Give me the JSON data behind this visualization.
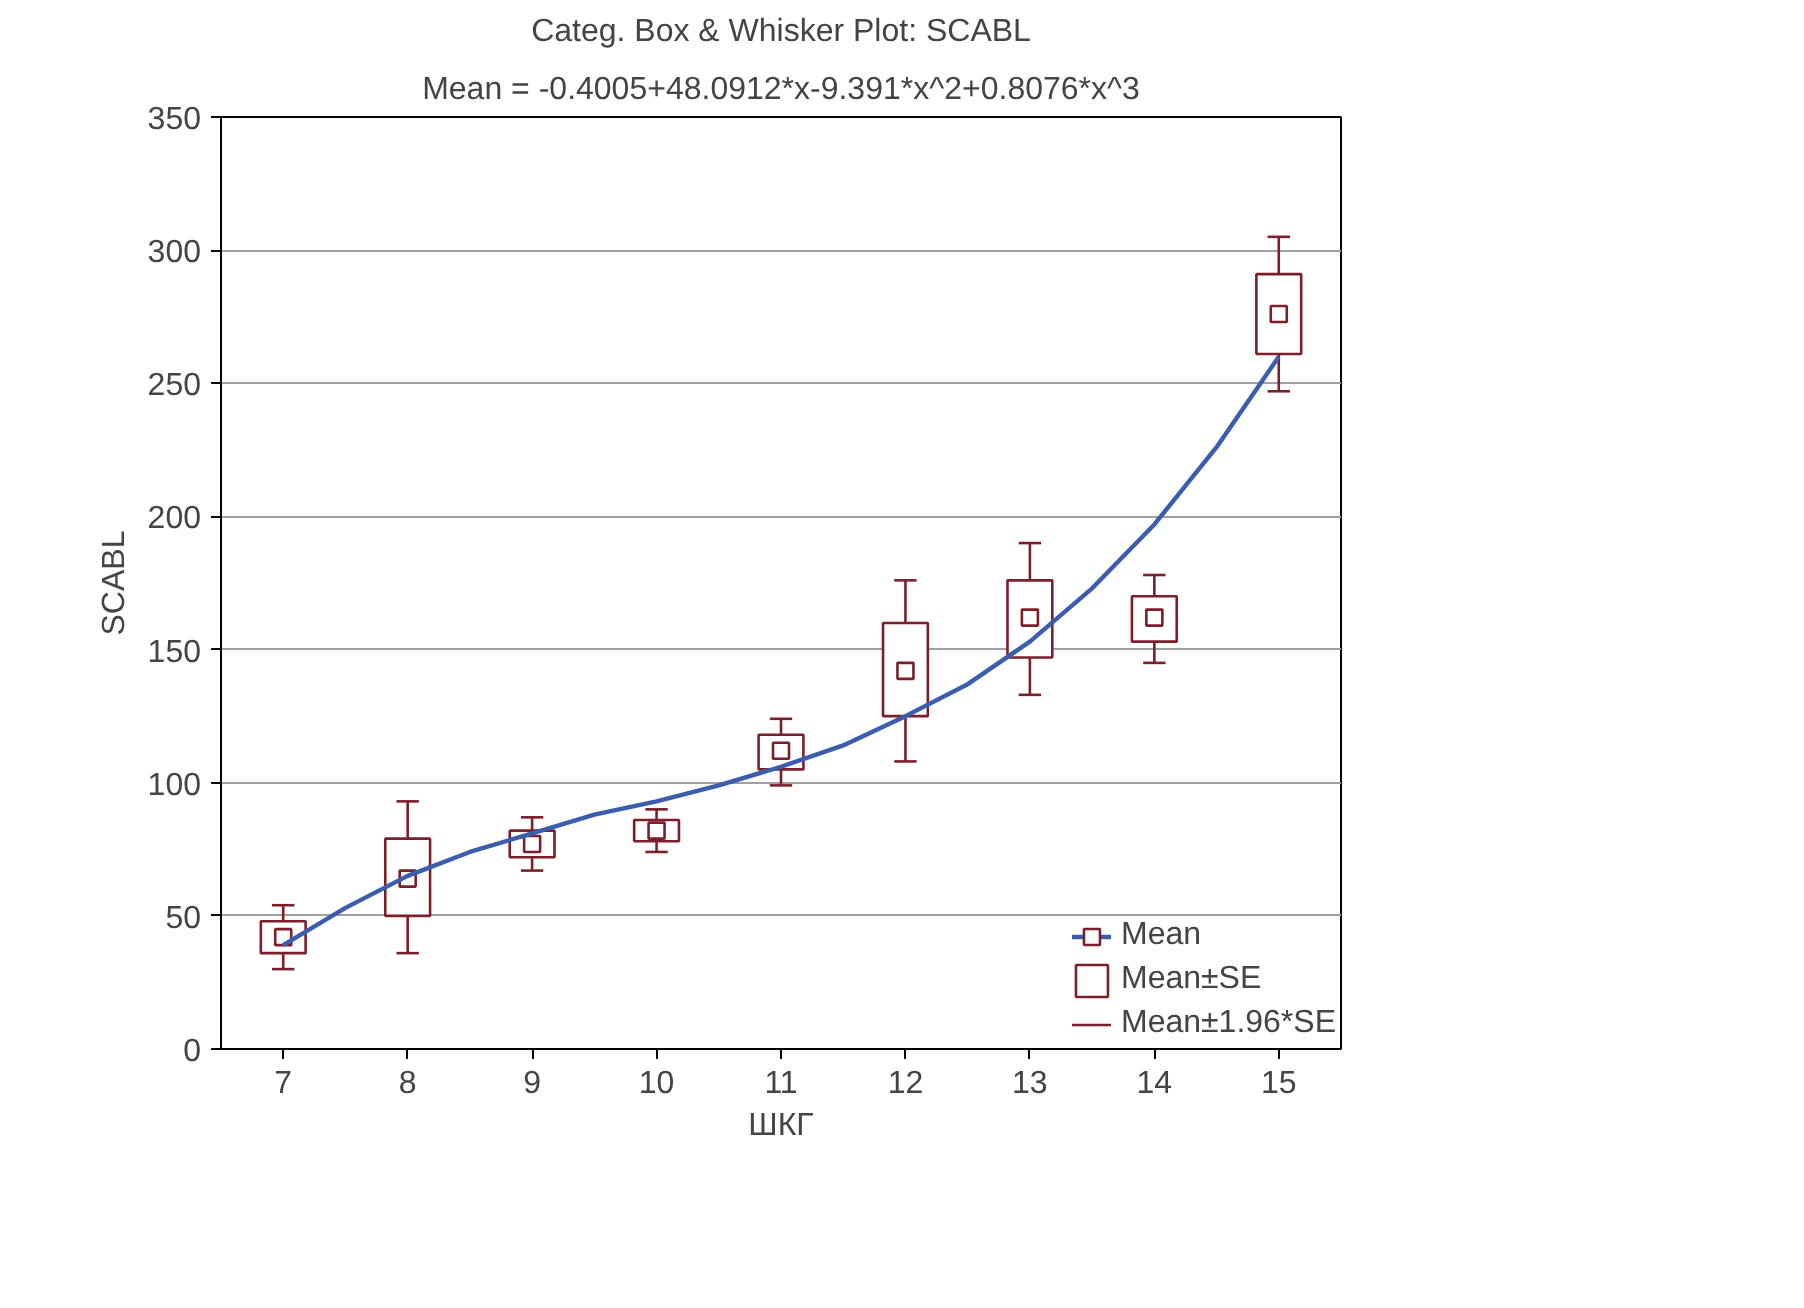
{
  "chart_data": {
    "type": "box",
    "title": "Categ. Box & Whisker Plot: SCABL",
    "subtitle": "Mean = -0.4005+48.0912*x-9.391*x^2+0.8076*x^3",
    "xlabel": "ШКГ",
    "ylabel": "SCABL",
    "xlim": [
      6.5,
      15.5
    ],
    "xticks": [
      7,
      8,
      9,
      10,
      11,
      12,
      13,
      14,
      15
    ],
    "ylim": [
      0,
      350
    ],
    "yticks": [
      0,
      50,
      100,
      150,
      200,
      250,
      300,
      350
    ],
    "grid": "y",
    "legend": "bottom right",
    "series": [
      {
        "name": "Mean±SE",
        "color": "#7b1f2a",
        "marker": "square",
        "x": [
          7,
          8,
          9,
          10,
          11,
          12,
          13,
          14,
          15
        ],
        "boxes": [
          {
            "low": 30,
            "q1": 36,
            "median": 42,
            "q3": 48,
            "high": 54
          },
          {
            "low": 36,
            "q1": 50,
            "median": 64,
            "q3": 79,
            "high": 93
          },
          {
            "low": 67,
            "q1": 72,
            "median": 77,
            "q3": 82,
            "high": 87
          },
          {
            "low": 74,
            "q1": 78,
            "median": 82,
            "q3": 86,
            "high": 90
          },
          {
            "low": 99,
            "q1": 105,
            "median": 112,
            "q3": 118,
            "high": 124
          },
          {
            "low": 108,
            "q1": 125,
            "median": 142,
            "q3": 160,
            "high": 176
          },
          {
            "low": 133,
            "q1": 147,
            "median": 162,
            "q3": 176,
            "high": 190
          },
          {
            "low": 145,
            "q1": 153,
            "median": 162,
            "q3": 170,
            "high": 178
          },
          {
            "low": 247,
            "q1": 261,
            "median": 276,
            "q3": 291,
            "high": 305
          }
        ]
      },
      {
        "type": "line",
        "name": "Mean",
        "color": "#3a5dae",
        "x": [
          7,
          7.5,
          8,
          8.5,
          9,
          9.5,
          10,
          10.5,
          11,
          11.5,
          12,
          12.5,
          13,
          13.5,
          14,
          14.5,
          15
        ],
        "values": [
          39,
          53,
          65,
          74,
          81,
          88,
          93,
          99,
          106,
          114,
          125,
          137,
          153,
          173,
          197,
          226,
          260
        ]
      }
    ],
    "annotations": [
      "Mean±1.96*SE"
    ]
  }
}
